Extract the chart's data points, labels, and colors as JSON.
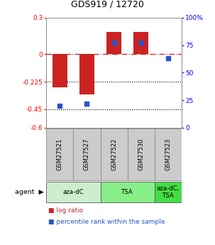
{
  "title": "GDS919 / 12720",
  "samples": [
    "GSM27521",
    "GSM27527",
    "GSM27522",
    "GSM27530",
    "GSM27523"
  ],
  "log_ratios": [
    -0.27,
    -0.33,
    0.185,
    0.185,
    0.0
  ],
  "percentile_ranks": [
    20,
    22,
    77,
    77,
    63
  ],
  "ylim_left": [
    -0.6,
    0.3
  ],
  "yright_min": 0,
  "yright_max": 100,
  "yticks_left": [
    0.3,
    0.0,
    -0.225,
    -0.45,
    -0.6
  ],
  "ytick_labels_left": [
    "0.3",
    "0",
    "-0.225",
    "-0.45",
    "-0.6"
  ],
  "yticks_right_vals": [
    100,
    75,
    50,
    25,
    0
  ],
  "ytick_labels_right": [
    "100%",
    "75",
    "50",
    "25",
    "0"
  ],
  "bar_color": "#cc2222",
  "dot_color": "#2255cc",
  "dashed_line_color": "#cc2222",
  "agent_groups": [
    {
      "label": "aza-dC",
      "start": 0,
      "end": 1,
      "color": "#cceecc"
    },
    {
      "label": "TSA",
      "start": 2,
      "end": 3,
      "color": "#88ee88"
    },
    {
      "label": "aza-dC,\nTSA",
      "start": 4,
      "end": 4,
      "color": "#44dd44"
    }
  ],
  "sample_box_color": "#cccccc",
  "legend_log_ratio_color": "#cc2222",
  "legend_pct_color": "#2255cc"
}
